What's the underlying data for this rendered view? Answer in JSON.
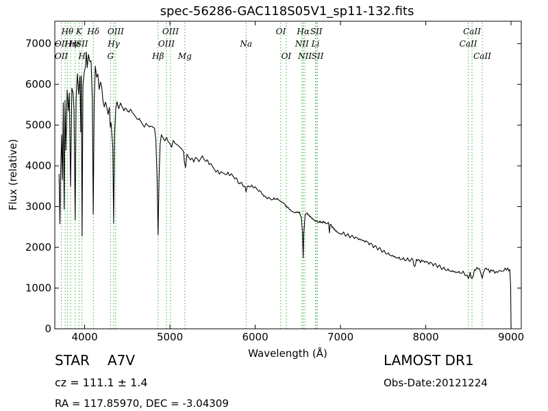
{
  "chart_data": {
    "type": "line",
    "title": "spec-56286-GAC118S05V1_sp11-132.fits",
    "xlabel": "Wavelength (Å)",
    "ylabel": "Flux (relative)",
    "xlim": [
      3650,
      9120
    ],
    "ylim": [
      0,
      7550
    ],
    "xticks": [
      4000,
      5000,
      6000,
      7000,
      8000,
      9000
    ],
    "yticks": [
      0,
      1000,
      2000,
      3000,
      4000,
      5000,
      6000,
      7000
    ],
    "grid": false,
    "line_color": "#000000",
    "marker_color": "#33aa33",
    "series": [
      {
        "points": [
          [
            3700,
            3800
          ],
          [
            3710,
            2550
          ],
          [
            3720,
            3900
          ],
          [
            3730,
            4700
          ],
          [
            3740,
            3600
          ],
          [
            3750,
            5500
          ],
          [
            3760,
            2900
          ],
          [
            3770,
            5600
          ],
          [
            3780,
            4400
          ],
          [
            3795,
            5900
          ],
          [
            3810,
            5400
          ],
          [
            3820,
            5850
          ],
          [
            3835,
            3550
          ],
          [
            3850,
            5950
          ],
          [
            3865,
            5800
          ],
          [
            3875,
            5400
          ],
          [
            3889,
            2650
          ],
          [
            3900,
            5600
          ],
          [
            3915,
            6200
          ],
          [
            3930,
            5700
          ],
          [
            3945,
            6150
          ],
          [
            3955,
            4800
          ],
          [
            3960,
            6200
          ],
          [
            3970,
            2300
          ],
          [
            3980,
            6000
          ],
          [
            3995,
            6350
          ],
          [
            4010,
            6500
          ],
          [
            4020,
            6850
          ],
          [
            4030,
            6450
          ],
          [
            4045,
            6750
          ],
          [
            4060,
            6550
          ],
          [
            4075,
            6550
          ],
          [
            4090,
            5600
          ],
          [
            4101,
            2750
          ],
          [
            4112,
            5500
          ],
          [
            4125,
            6400
          ],
          [
            4140,
            6150
          ],
          [
            4155,
            6250
          ],
          [
            4170,
            5900
          ],
          [
            4185,
            6100
          ],
          [
            4200,
            6000
          ],
          [
            4215,
            5650
          ],
          [
            4230,
            5500
          ],
          [
            4245,
            5600
          ],
          [
            4260,
            5450
          ],
          [
            4275,
            5250
          ],
          [
            4290,
            5400
          ],
          [
            4300,
            4900
          ],
          [
            4310,
            5000
          ],
          [
            4330,
            4400
          ],
          [
            4340,
            2550
          ],
          [
            4350,
            4700
          ],
          [
            4365,
            5400
          ],
          [
            4380,
            5600
          ],
          [
            4400,
            5450
          ],
          [
            4420,
            5600
          ],
          [
            4440,
            5500
          ],
          [
            4460,
            5400
          ],
          [
            4480,
            5450
          ],
          [
            4500,
            5350
          ],
          [
            4520,
            5300
          ],
          [
            4540,
            5350
          ],
          [
            4560,
            5250
          ],
          [
            4580,
            5200
          ],
          [
            4600,
            5150
          ],
          [
            4620,
            5100
          ],
          [
            4640,
            5150
          ],
          [
            4660,
            5100
          ],
          [
            4680,
            5050
          ],
          [
            4700,
            5000
          ],
          [
            4720,
            5100
          ],
          [
            4740,
            5050
          ],
          [
            4760,
            5000
          ],
          [
            4780,
            5000
          ],
          [
            4800,
            4950
          ],
          [
            4820,
            4900
          ],
          [
            4835,
            4600
          ],
          [
            4850,
            3600
          ],
          [
            4861,
            2250
          ],
          [
            4872,
            3600
          ],
          [
            4885,
            4500
          ],
          [
            4900,
            4750
          ],
          [
            4920,
            4700
          ],
          [
            4940,
            4650
          ],
          [
            4960,
            4750
          ],
          [
            4980,
            4650
          ],
          [
            5000,
            4600
          ],
          [
            5020,
            4500
          ],
          [
            5040,
            4650
          ],
          [
            5060,
            4550
          ],
          [
            5080,
            4500
          ],
          [
            5100,
            4450
          ],
          [
            5120,
            4400
          ],
          [
            5140,
            4350
          ],
          [
            5160,
            4300
          ],
          [
            5170,
            4050
          ],
          [
            5183,
            3950
          ],
          [
            5200,
            4300
          ],
          [
            5220,
            4250
          ],
          [
            5240,
            4200
          ],
          [
            5260,
            4250
          ],
          [
            5280,
            4150
          ],
          [
            5300,
            4250
          ],
          [
            5320,
            4200
          ],
          [
            5340,
            4100
          ],
          [
            5360,
            4150
          ],
          [
            5380,
            4200
          ],
          [
            5400,
            4100
          ],
          [
            5420,
            4050
          ],
          [
            5440,
            4100
          ],
          [
            5460,
            4000
          ],
          [
            5480,
            4050
          ],
          [
            5500,
            4000
          ],
          [
            5520,
            3950
          ],
          [
            5540,
            3900
          ],
          [
            5560,
            3950
          ],
          [
            5580,
            3850
          ],
          [
            5600,
            3900
          ],
          [
            5620,
            3850
          ],
          [
            5640,
            3800
          ],
          [
            5660,
            3750
          ],
          [
            5680,
            3800
          ],
          [
            5700,
            3700
          ],
          [
            5720,
            3750
          ],
          [
            5740,
            3700
          ],
          [
            5760,
            3650
          ],
          [
            5780,
            3700
          ],
          [
            5800,
            3600
          ],
          [
            5820,
            3600
          ],
          [
            5840,
            3650
          ],
          [
            5860,
            3550
          ],
          [
            5880,
            3550
          ],
          [
            5893,
            3400
          ],
          [
            5905,
            3500
          ],
          [
            5920,
            3500
          ],
          [
            5940,
            3450
          ],
          [
            5960,
            3480
          ],
          [
            5980,
            3400
          ],
          [
            6000,
            3430
          ],
          [
            6020,
            3380
          ],
          [
            6040,
            3350
          ],
          [
            6060,
            3380
          ],
          [
            6080,
            3330
          ],
          [
            6100,
            3300
          ],
          [
            6120,
            3300
          ],
          [
            6140,
            3250
          ],
          [
            6160,
            3280
          ],
          [
            6180,
            3220
          ],
          [
            6200,
            3180
          ],
          [
            6220,
            3200
          ],
          [
            6240,
            3150
          ],
          [
            6260,
            3150
          ],
          [
            6280,
            3100
          ],
          [
            6300,
            3070
          ],
          [
            6320,
            3050
          ],
          [
            6340,
            3050
          ],
          [
            6360,
            3000
          ],
          [
            6380,
            3000
          ],
          [
            6400,
            2980
          ],
          [
            6420,
            2950
          ],
          [
            6440,
            2930
          ],
          [
            6460,
            2900
          ],
          [
            6480,
            2900
          ],
          [
            6500,
            2880
          ],
          [
            6520,
            2850
          ],
          [
            6540,
            2700
          ],
          [
            6555,
            2300
          ],
          [
            6563,
            1680
          ],
          [
            6570,
            2300
          ],
          [
            6585,
            2750
          ],
          [
            6600,
            2820
          ],
          [
            6620,
            2800
          ],
          [
            6640,
            2780
          ],
          [
            6660,
            2760
          ],
          [
            6680,
            2740
          ],
          [
            6700,
            2700
          ],
          [
            6720,
            2700
          ],
          [
            6740,
            2650
          ],
          [
            6760,
            2650
          ],
          [
            6780,
            2600
          ],
          [
            6800,
            2600
          ],
          [
            6820,
            2560
          ],
          [
            6840,
            2520
          ],
          [
            6860,
            2560
          ],
          [
            6870,
            2320
          ],
          [
            6880,
            2550
          ],
          [
            6900,
            2500
          ],
          [
            6920,
            2480
          ],
          [
            6940,
            2450
          ],
          [
            6960,
            2430
          ],
          [
            6980,
            2400
          ],
          [
            7000,
            2380
          ],
          [
            7050,
            2330
          ],
          [
            7100,
            2270
          ],
          [
            7150,
            2230
          ],
          [
            7200,
            2180
          ],
          [
            7250,
            2130
          ],
          [
            7300,
            2100
          ],
          [
            7350,
            2050
          ],
          [
            7400,
            2000
          ],
          [
            7450,
            1970
          ],
          [
            7500,
            1920
          ],
          [
            7550,
            1880
          ],
          [
            7600,
            1840
          ],
          [
            7650,
            1800
          ],
          [
            7700,
            1760
          ],
          [
            7750,
            1730
          ],
          [
            7800,
            1700
          ],
          [
            7850,
            1680
          ],
          [
            7870,
            1500
          ],
          [
            7890,
            1660
          ],
          [
            7950,
            1630
          ],
          [
            8000,
            1600
          ],
          [
            8050,
            1580
          ],
          [
            8100,
            1560
          ],
          [
            8150,
            1540
          ],
          [
            8200,
            1500
          ],
          [
            8250,
            1480
          ],
          [
            8300,
            1460
          ],
          [
            8350,
            1440
          ],
          [
            8400,
            1420
          ],
          [
            8450,
            1400
          ],
          [
            8498,
            1250
          ],
          [
            8520,
            1380
          ],
          [
            8542,
            1200
          ],
          [
            8570,
            1400
          ],
          [
            8600,
            1450
          ],
          [
            8630,
            1420
          ],
          [
            8662,
            1200
          ],
          [
            8690,
            1430
          ],
          [
            8720,
            1450
          ],
          [
            8750,
            1400
          ],
          [
            8780,
            1460
          ],
          [
            8810,
            1420
          ],
          [
            8840,
            1440
          ],
          [
            8870,
            1480
          ],
          [
            8900,
            1450
          ],
          [
            8930,
            1500
          ],
          [
            8960,
            1480
          ],
          [
            8985,
            1420
          ],
          [
            8995,
            1000
          ],
          [
            9000,
            30
          ]
        ]
      }
    ],
    "lines": [
      {
        "wavelength": 3727,
        "rows": [
          {
            "label": "OII",
            "row": 2
          },
          {
            "label": "OII",
            "row": 3
          }
        ]
      },
      {
        "wavelength": 3771,
        "rows": [
          {
            "label": "",
            "row": 0
          }
        ]
      },
      {
        "wavelength": 3798,
        "rows": [
          {
            "label": "Hθ",
            "row": 1
          }
        ]
      },
      {
        "wavelength": 3835,
        "rows": [
          {
            "label": "Hη",
            "row": 2
          }
        ]
      },
      {
        "wavelength": 3889,
        "rows": [
          {
            "label": "Hε",
            "row": 2
          }
        ]
      },
      {
        "wavelength": 3934,
        "rows": [
          {
            "label": "K",
            "row": 1
          }
        ]
      },
      {
        "wavelength": 3969,
        "rows": [
          {
            "label": "SII",
            "row": 2
          },
          {
            "label": "H",
            "row": 3
          }
        ]
      },
      {
        "wavelength": 4102,
        "rows": [
          {
            "label": "Hδ",
            "row": 1
          }
        ]
      },
      {
        "wavelength": 4303,
        "rows": [
          {
            "label": "G",
            "row": 3
          }
        ]
      },
      {
        "wavelength": 4341,
        "rows": [
          {
            "label": "Hγ",
            "row": 2
          }
        ]
      },
      {
        "wavelength": 4364,
        "rows": [
          {
            "label": "OIII",
            "row": 1
          }
        ]
      },
      {
        "wavelength": 4861,
        "rows": [
          {
            "label": "Hβ",
            "row": 3
          }
        ]
      },
      {
        "wavelength": 4959,
        "rows": [
          {
            "label": "OIII",
            "row": 2
          }
        ]
      },
      {
        "wavelength": 5007,
        "rows": [
          {
            "label": "OIII",
            "row": 1
          }
        ]
      },
      {
        "wavelength": 5175,
        "rows": [
          {
            "label": "Mg",
            "row": 3
          }
        ]
      },
      {
        "wavelength": 5893,
        "rows": [
          {
            "label": "Na",
            "row": 2
          }
        ]
      },
      {
        "wavelength": 6300,
        "rows": [
          {
            "label": "OI",
            "row": 1
          }
        ]
      },
      {
        "wavelength": 6364,
        "rows": [
          {
            "label": "OI",
            "row": 3
          }
        ]
      },
      {
        "wavelength": 6548,
        "rows": [
          {
            "label": "NII",
            "row": 2
          }
        ]
      },
      {
        "wavelength": 6563,
        "rows": [
          {
            "label": "Hα",
            "row": 1
          }
        ]
      },
      {
        "wavelength": 6583,
        "rows": [
          {
            "label": "NII",
            "row": 3
          }
        ]
      },
      {
        "wavelength": 6707,
        "rows": [
          {
            "label": "Li",
            "row": 2
          }
        ]
      },
      {
        "wavelength": 6716,
        "rows": [
          {
            "label": "SII",
            "row": 1
          }
        ]
      },
      {
        "wavelength": 6731,
        "rows": [
          {
            "label": "SII",
            "row": 3
          }
        ]
      },
      {
        "wavelength": 8498,
        "rows": [
          {
            "label": "CaII",
            "row": 2
          }
        ]
      },
      {
        "wavelength": 8542,
        "rows": [
          {
            "label": "CaII",
            "row": 1
          }
        ]
      },
      {
        "wavelength": 8662,
        "rows": [
          {
            "label": "CaII",
            "row": 3
          }
        ]
      }
    ]
  },
  "info": {
    "object_class": "STAR",
    "subclass": "A7V",
    "survey": "LAMOST DR1",
    "redshift": "cz = 111.1 ± 1.4",
    "obs_date": "Obs-Date:20121224",
    "coords": "RA = 117.85970, DEC = -3.04309"
  }
}
